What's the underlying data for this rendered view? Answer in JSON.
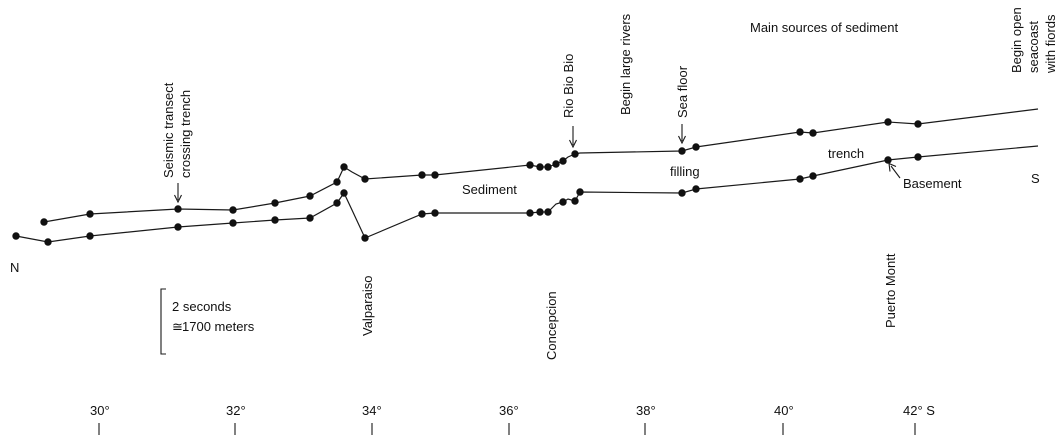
{
  "labels": {
    "seismic_transect": [
      "Seismic transect",
      "crossing trench"
    ],
    "rio_bio_bio": "Rio Bio Bio",
    "begin_large_rivers": "Begin large rivers",
    "sea_floor": "Sea floor",
    "main_sources": "Main sources of sediment",
    "begin_open_seacoast": [
      "Begin open",
      "seacoast",
      "with fiords"
    ],
    "sediment": "Sediment",
    "filling": "filling",
    "trench": "trench",
    "basement": "Basement",
    "north": "N",
    "south": "S",
    "valparaiso": "Valparaiso",
    "concepcion": "Concepcion",
    "puerto_montt": "Puerto Montt"
  },
  "scale_bar": {
    "line1": "2 seconds",
    "line2": "1700 meters",
    "approx_symbol": "≅"
  },
  "latitude_axis": {
    "ticks": [
      "30°",
      "32°",
      "34°",
      "36°",
      "38°",
      "40°",
      "42° S"
    ]
  }
}
